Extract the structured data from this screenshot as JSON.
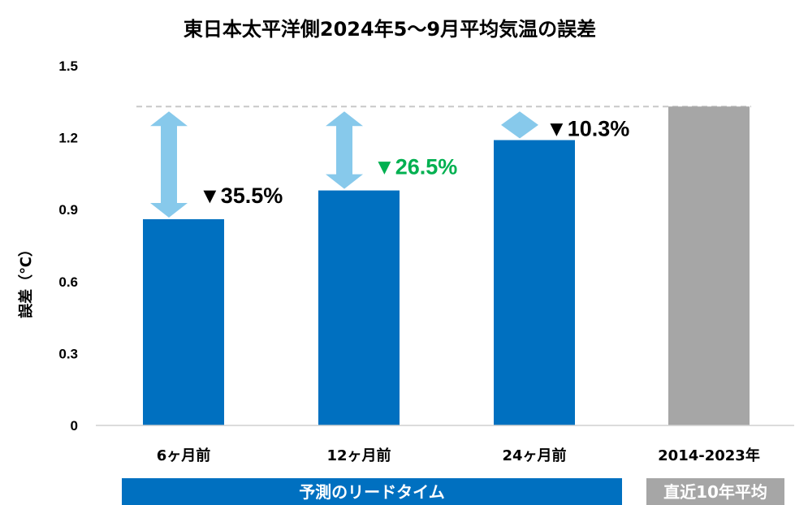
{
  "chart_data": {
    "type": "bar",
    "title": "東日本太平洋側2024年5～9月平均気温の誤差",
    "ylabel": "誤差（℃）",
    "ylim": [
      0,
      1.5
    ],
    "yticks": [
      0,
      0.3,
      0.6,
      0.9,
      1.2,
      1.5
    ],
    "ytick_labels": [
      "0",
      "0.3",
      "0.6",
      "0.9",
      "1.2",
      "1.5"
    ],
    "categories": [
      "6ヶ月前",
      "12ヶ月前",
      "24ヶ月前",
      "2014-2023年"
    ],
    "values": [
      0.86,
      0.98,
      1.19,
      1.33
    ],
    "bar_colors": [
      "#0070c0",
      "#0070c0",
      "#0070c0",
      "#a6a6a6"
    ],
    "reference_line": 1.33,
    "reductions": [
      {
        "label": "▼35.5%",
        "color": "#000000"
      },
      {
        "label": "▼26.5%",
        "color": "#00b050"
      },
      {
        "label": "▼10.3%",
        "color": "#000000"
      }
    ],
    "groups": [
      {
        "label": "予測のリードタイム",
        "color": "#0070c0"
      },
      {
        "label": "直近10年平均",
        "color": "#a6a6a6"
      }
    ],
    "arrow_color": "#87c9eb"
  }
}
